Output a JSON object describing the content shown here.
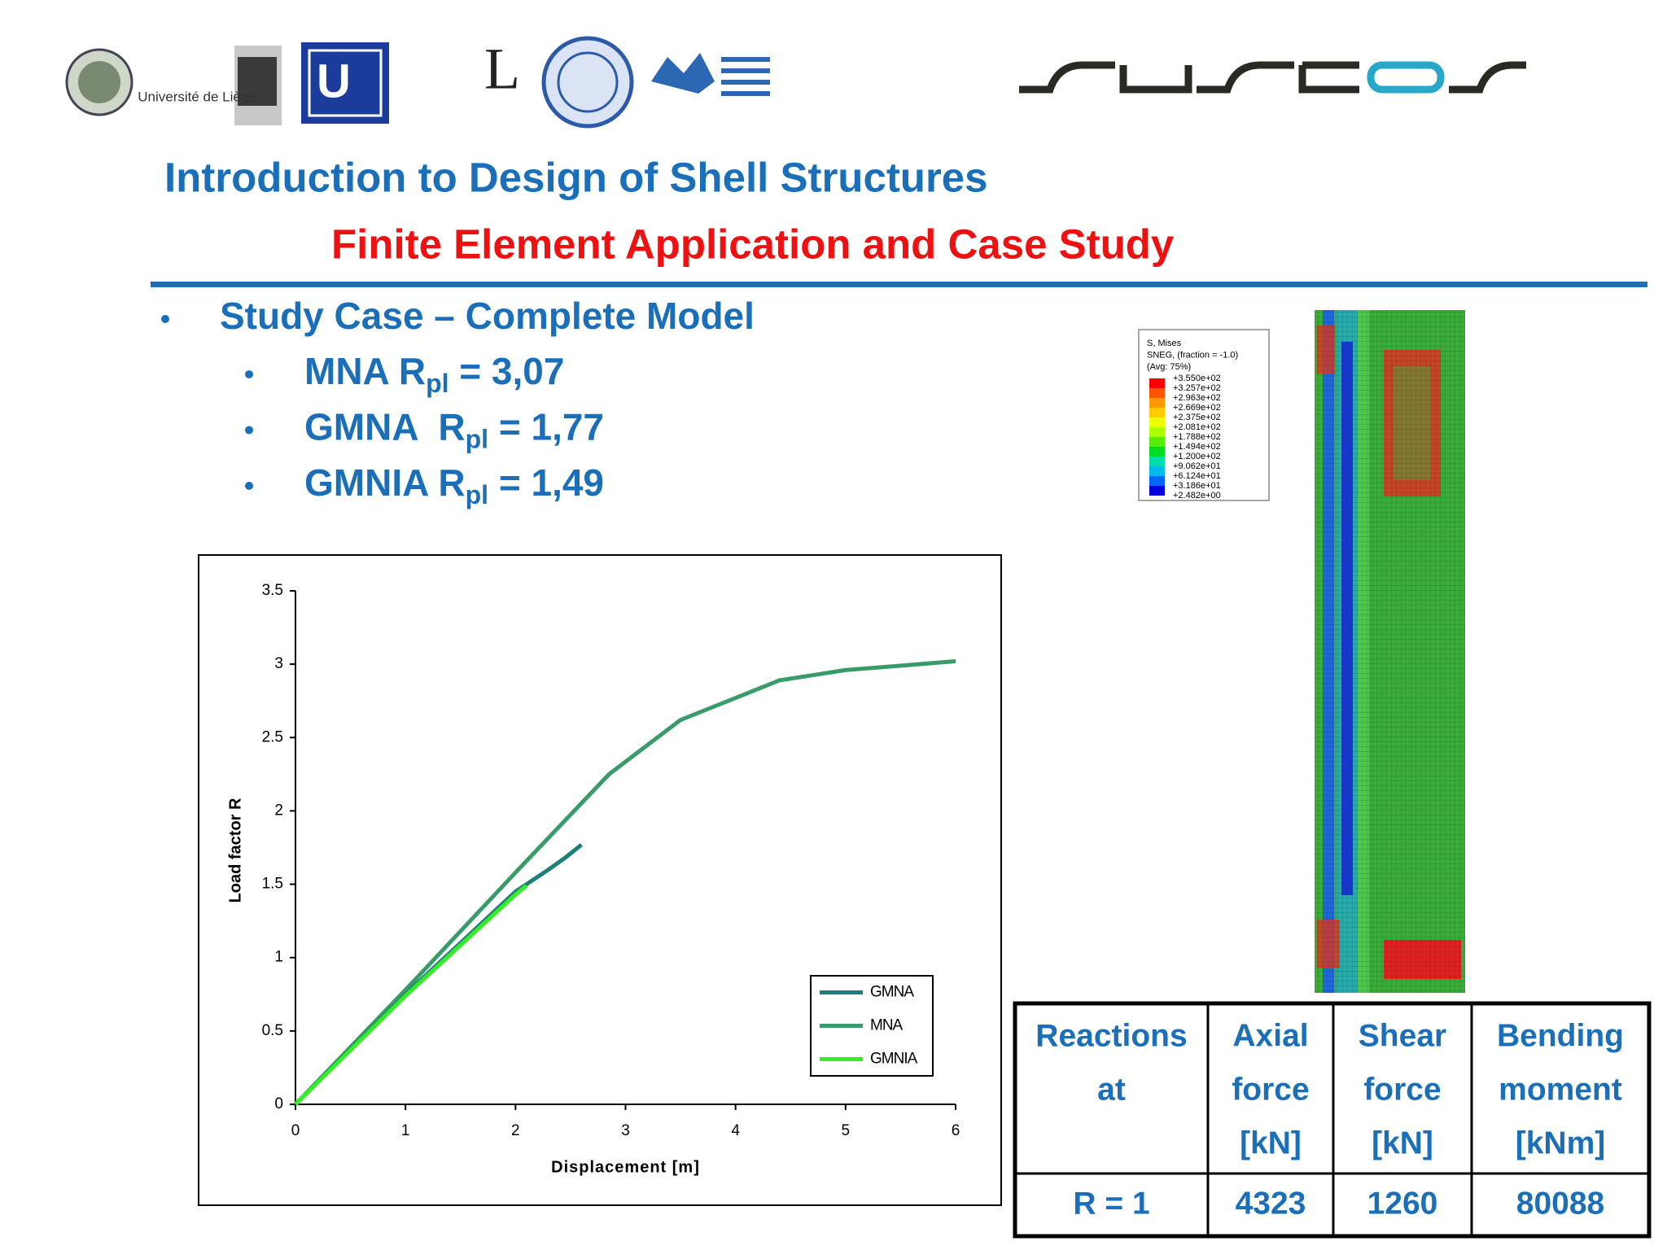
{
  "header": {
    "logo_text": "Université de Liège",
    "title": "Introduction to Design of Shell Structures",
    "subtitle": "Finite Element Application and Case Study"
  },
  "bullets": {
    "main": "Study Case – Complete Model",
    "items": [
      {
        "label": "MNA R",
        "sub": "pl",
        "value": " = 3,07"
      },
      {
        "label": "GMNA  R",
        "sub": "pl",
        "value": " = 1,77"
      },
      {
        "label": "GMNIA R",
        "sub": "pl",
        "value": " = 1,49"
      }
    ]
  },
  "chart_data": {
    "type": "line",
    "x_label": "Displacement [m]",
    "y_label": "Load factor R",
    "xlim": [
      0,
      6
    ],
    "ylim": [
      0,
      3.5
    ],
    "xticks": [
      0,
      1,
      2,
      3,
      4,
      5,
      6
    ],
    "yticks": [
      0,
      0.5,
      1,
      1.5,
      2,
      2.5,
      3,
      3.5
    ],
    "legend": "lower right",
    "grid": false,
    "series": [
      {
        "name": "GMNA",
        "color": "#1b7f7a",
        "x": [
          0,
          1,
          2,
          2.1,
          2.3,
          2.45,
          2.6
        ],
        "values": [
          0,
          0.75,
          1.45,
          1.5,
          1.6,
          1.68,
          1.77
        ]
      },
      {
        "name": "MNA",
        "color": "#3a9b6a",
        "x": [
          0,
          1,
          2,
          2.85,
          3.5,
          3.9,
          4.4,
          5,
          5.5,
          6
        ],
        "values": [
          0,
          0.78,
          1.58,
          2.25,
          2.62,
          2.74,
          2.89,
          2.96,
          2.99,
          3.02
        ]
      },
      {
        "name": "GMNIA",
        "color": "#33ee22",
        "x": [
          0,
          1,
          2,
          2.1
        ],
        "values": [
          0,
          0.74,
          1.43,
          1.49
        ]
      }
    ]
  },
  "contour_legend": {
    "title_lines": [
      "S, Mises",
      "SNEG, (fraction = -1.0)",
      "(Avg: 75%)"
    ],
    "labels": [
      "+3.550e+02",
      "+3.257e+02",
      "+2.963e+02",
      "+2.669e+02",
      "+2.375e+02",
      "+2.081e+02",
      "+1.788e+02",
      "+1.494e+02",
      "+1.200e+02",
      "+9.062e+01",
      "+6.124e+01",
      "+3.186e+01",
      "+2.482e+00"
    ],
    "colors": [
      "#ff0000",
      "#ff5500",
      "#ff9900",
      "#ffcc00",
      "#eeff00",
      "#aaff00",
      "#55ee00",
      "#00dd22",
      "#00ddaa",
      "#00bbee",
      "#0066ff",
      "#0000dd"
    ]
  },
  "table": {
    "header": [
      [
        "Reactions",
        "at"
      ],
      [
        "Axial",
        "force",
        "[kN]"
      ],
      [
        "Shear",
        "force",
        "[kN]"
      ],
      [
        "Bending",
        "moment",
        "[kNm]"
      ]
    ],
    "rows": [
      [
        "R = 1",
        4323,
        1260,
        80088
      ]
    ]
  }
}
